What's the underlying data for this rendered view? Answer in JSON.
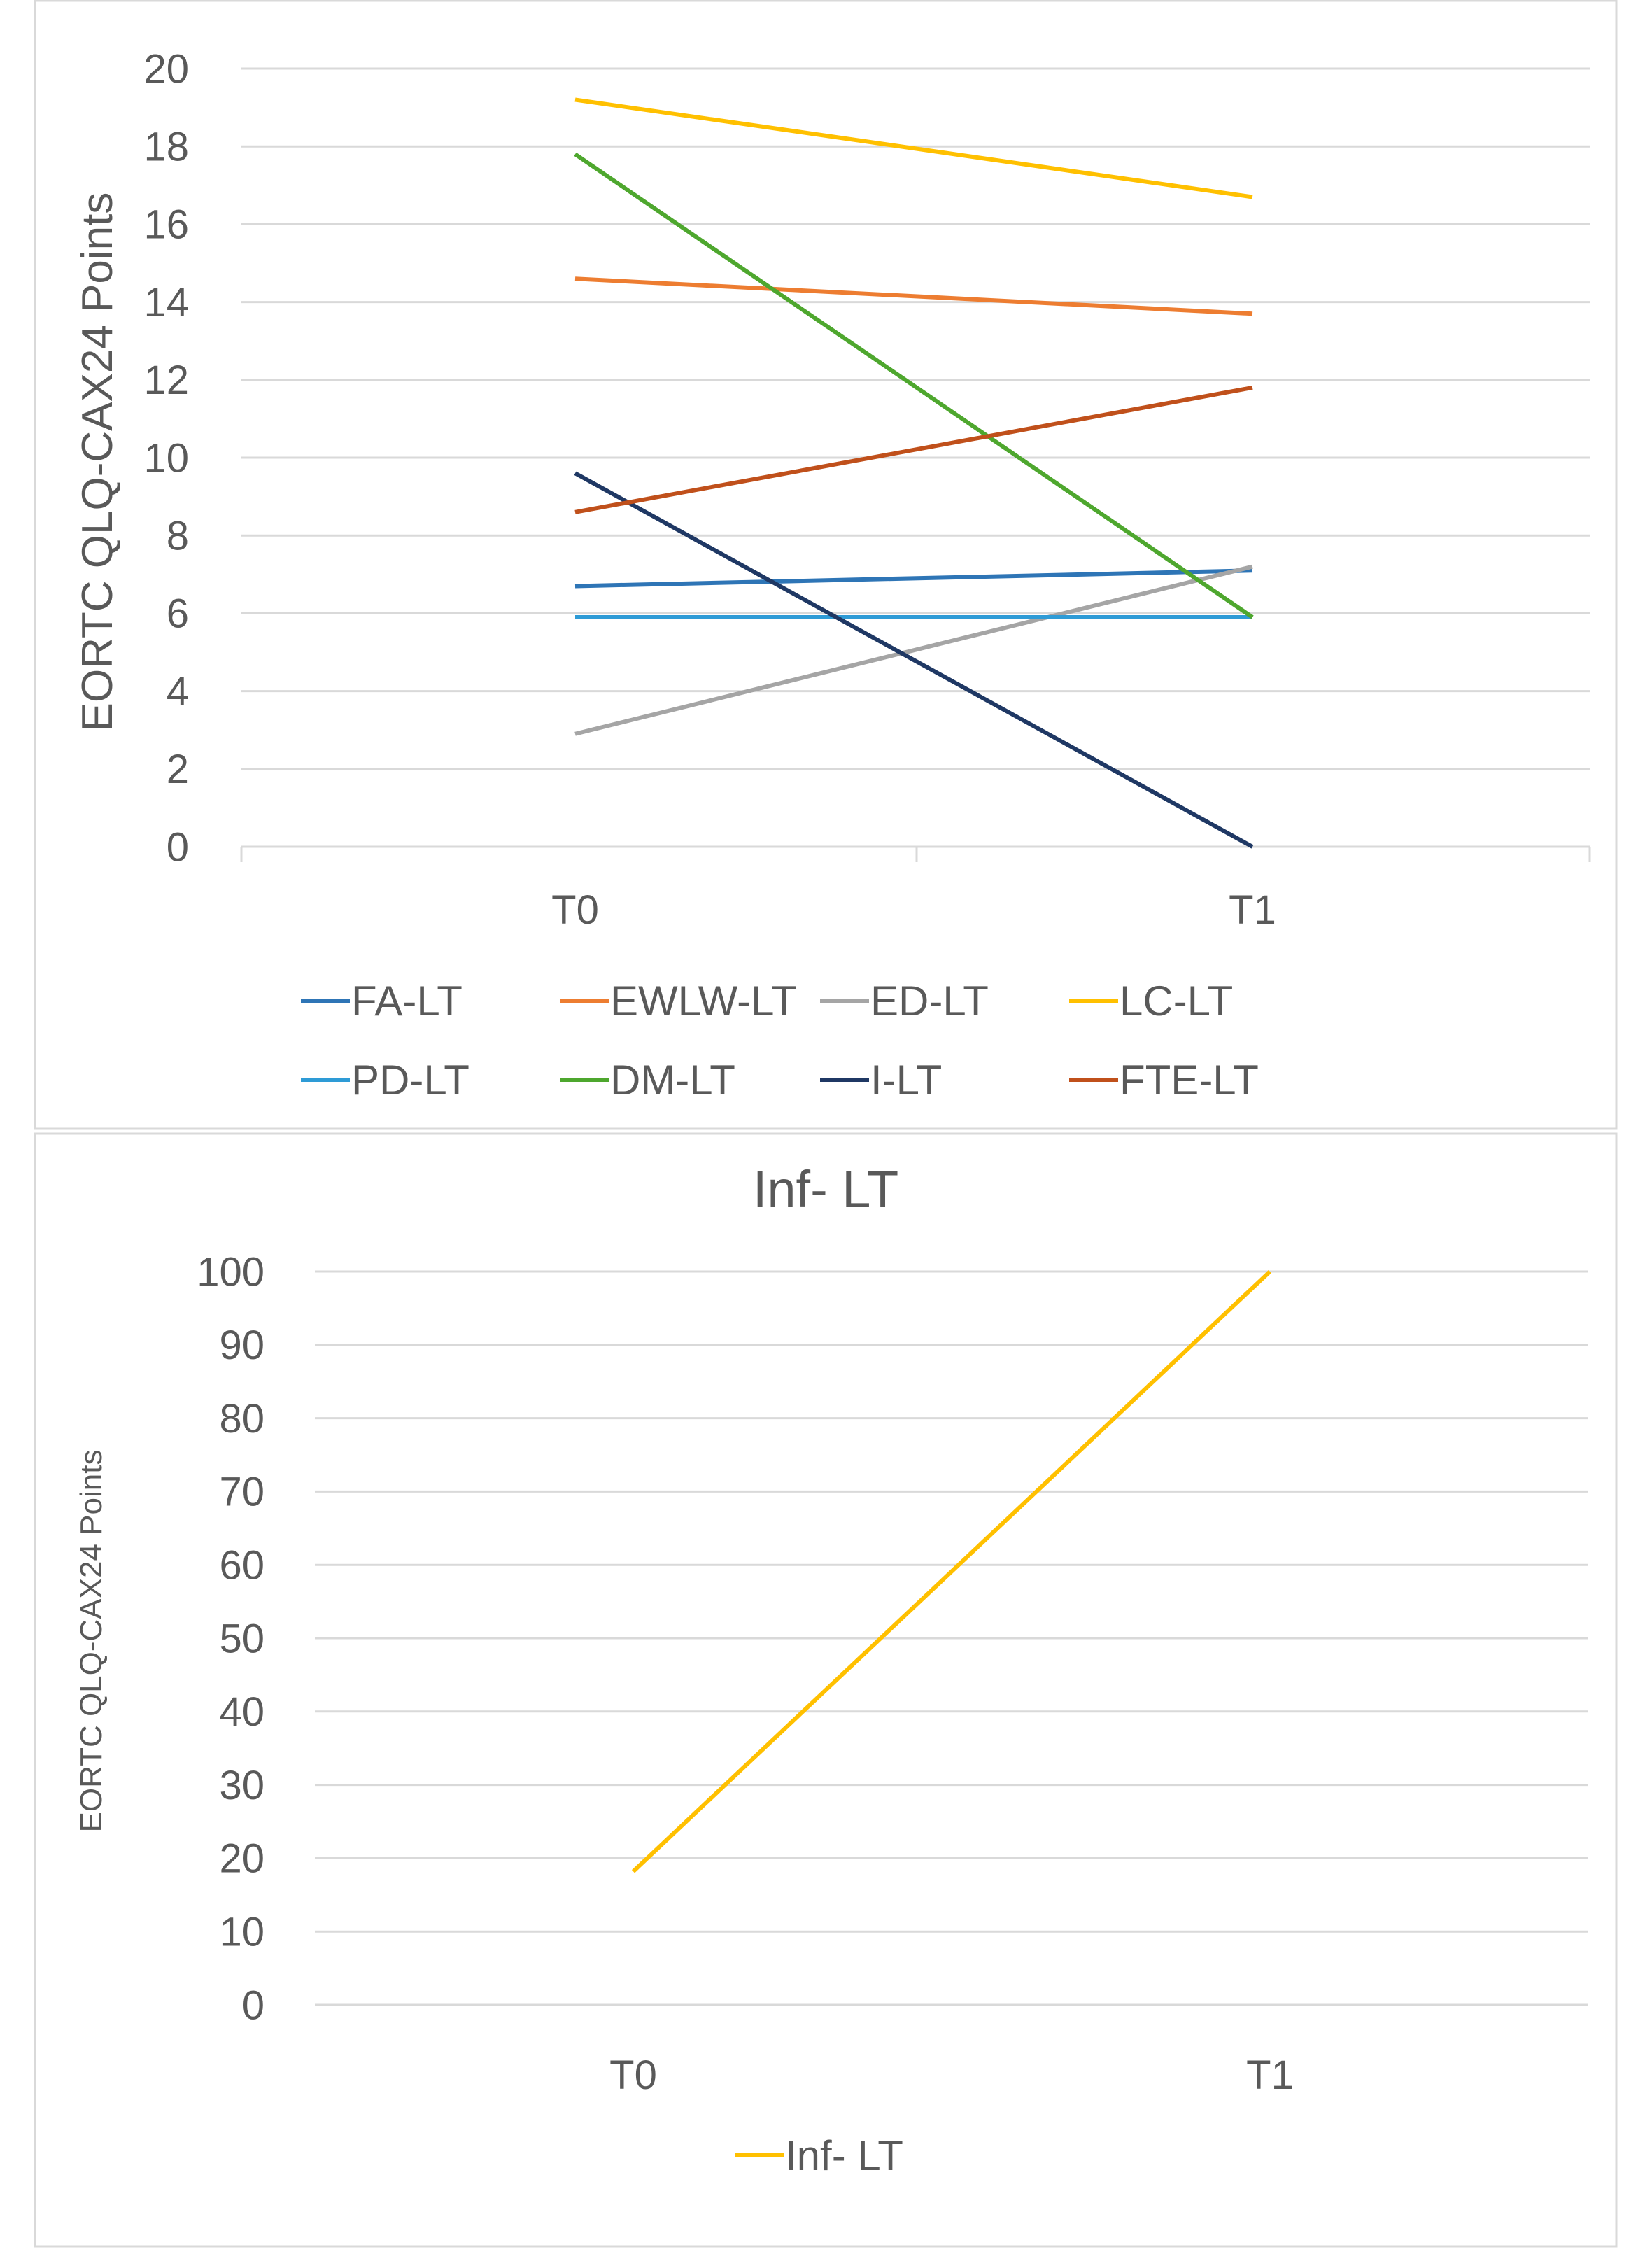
{
  "chart_data": [
    {
      "type": "line",
      "title": "",
      "xlabel": "",
      "ylabel": "EORTC QLQ-CAX24 Points",
      "categories": [
        "T0",
        "T1"
      ],
      "ylim": [
        0,
        20
      ],
      "yticks": [
        0,
        2,
        4,
        6,
        8,
        10,
        12,
        14,
        16,
        18,
        20
      ],
      "grid": true,
      "legend_position": "bottom",
      "series": [
        {
          "name": "FA-LT",
          "values": [
            6.7,
            7.1
          ],
          "color": "#2E75B6"
        },
        {
          "name": "EWLW-LT",
          "values": [
            14.6,
            13.7
          ],
          "color": "#ED7D31"
        },
        {
          "name": "ED-LT",
          "values": [
            2.9,
            7.2
          ],
          "color": "#A5A5A5"
        },
        {
          "name": "LC-LT",
          "values": [
            19.2,
            16.7
          ],
          "color": "#FFC000"
        },
        {
          "name": "PD-LT",
          "values": [
            5.9,
            5.9
          ],
          "color": "#2E9BD6"
        },
        {
          "name": "DM-LT",
          "values": [
            17.8,
            5.9
          ],
          "color": "#4EA72E"
        },
        {
          "name": "I-LT",
          "values": [
            9.6,
            0.0
          ],
          "color": "#1F3864"
        },
        {
          "name": "FTE-LT",
          "values": [
            8.6,
            11.8
          ],
          "color": "#C0501B"
        }
      ]
    },
    {
      "type": "line",
      "title": "Inf- LT",
      "xlabel": "",
      "ylabel": "EORTC QLQ-CAX24 Points",
      "categories": [
        "T0",
        "T1"
      ],
      "ylim": [
        0,
        100
      ],
      "yticks": [
        0,
        10,
        20,
        30,
        40,
        50,
        60,
        70,
        80,
        90,
        100
      ],
      "grid": true,
      "legend_position": "bottom",
      "series": [
        {
          "name": "Inf- LT",
          "values": [
            18.2,
            100
          ],
          "color": "#FFC000"
        }
      ]
    }
  ]
}
